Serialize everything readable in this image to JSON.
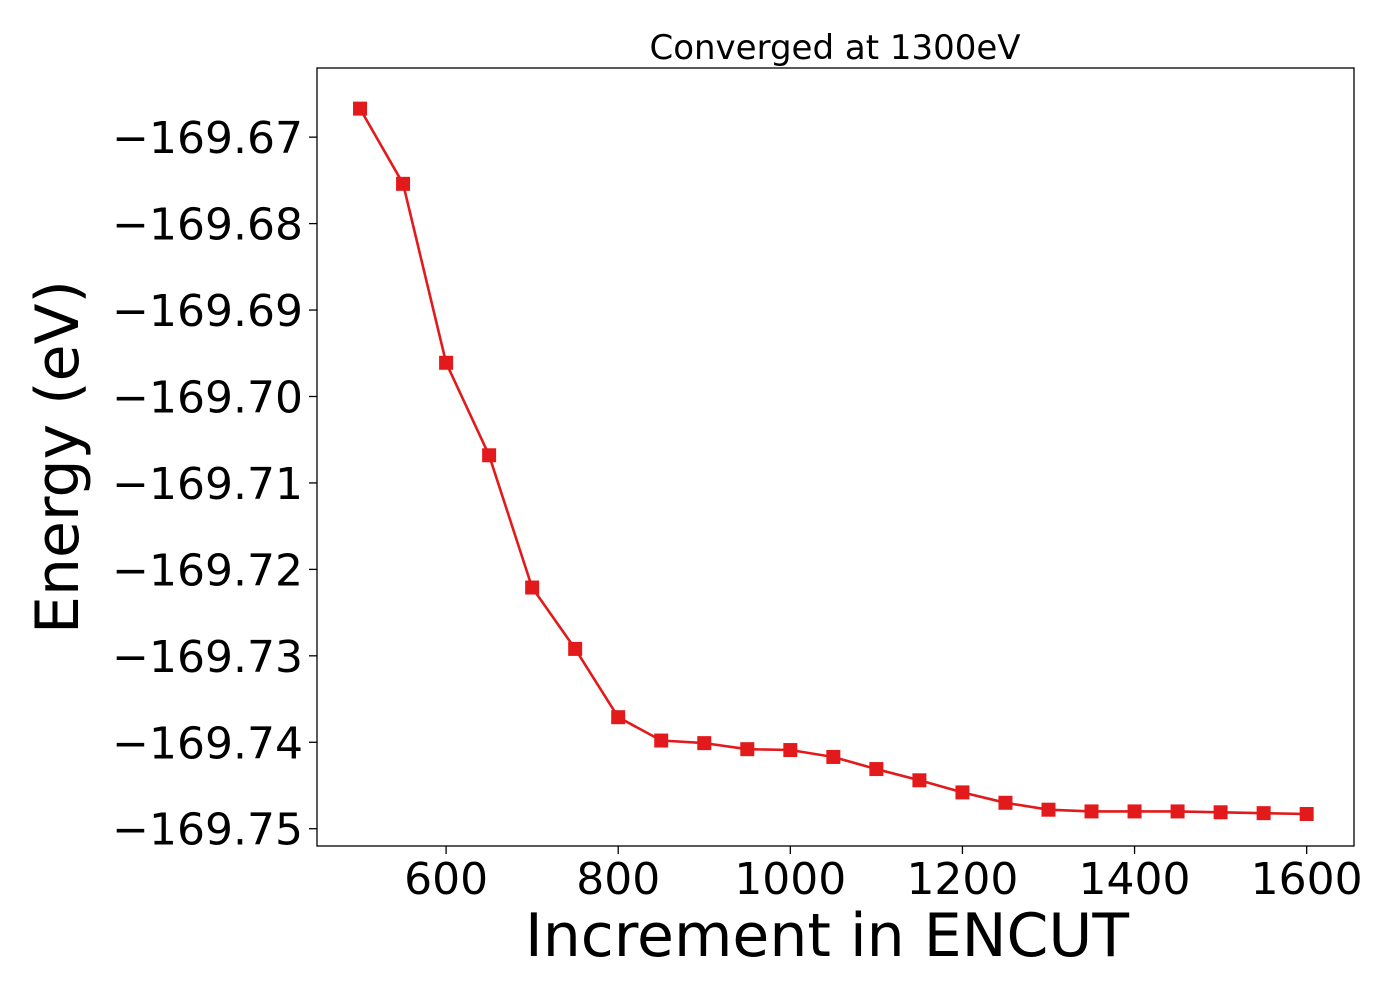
{
  "chart_data": {
    "type": "line",
    "title": "Converged at 1300eV",
    "xlabel": "Increment in ENCUT",
    "ylabel": "Energy (eV)",
    "xlim": [
      450,
      1655
    ],
    "ylim": [
      -169.752,
      -169.662
    ],
    "xticks": [
      600,
      800,
      1000,
      1200,
      1400,
      1600
    ],
    "xtick_labels": [
      "600",
      "800",
      "1000",
      "1200",
      "1400",
      "1600"
    ],
    "yticks": [
      -169.67,
      -169.68,
      -169.69,
      -169.7,
      -169.71,
      -169.72,
      -169.73,
      -169.74,
      -169.75
    ],
    "ytick_labels": [
      "−169.67",
      "−169.68",
      "−169.69",
      "−169.70",
      "−169.71",
      "−169.72",
      "−169.73",
      "−169.74",
      "−169.75"
    ],
    "grid": false,
    "series": [
      {
        "color": "#e31a1c",
        "marker": "square",
        "x": [
          500,
          550,
          600,
          650,
          700,
          750,
          800,
          850,
          900,
          950,
          1000,
          1050,
          1100,
          1150,
          1200,
          1250,
          1300,
          1350,
          1400,
          1450,
          1500,
          1550,
          1600
        ],
        "y": [
          -169.6667,
          -169.6754,
          -169.6961,
          -169.7068,
          -169.7221,
          -169.7292,
          -169.7371,
          -169.7398,
          -169.7401,
          -169.7408,
          -169.7409,
          -169.7417,
          -169.7431,
          -169.7444,
          -169.7458,
          -169.747,
          -169.7478,
          -169.748,
          -169.748,
          -169.748,
          -169.7481,
          -169.7482,
          -169.7483
        ]
      }
    ]
  }
}
